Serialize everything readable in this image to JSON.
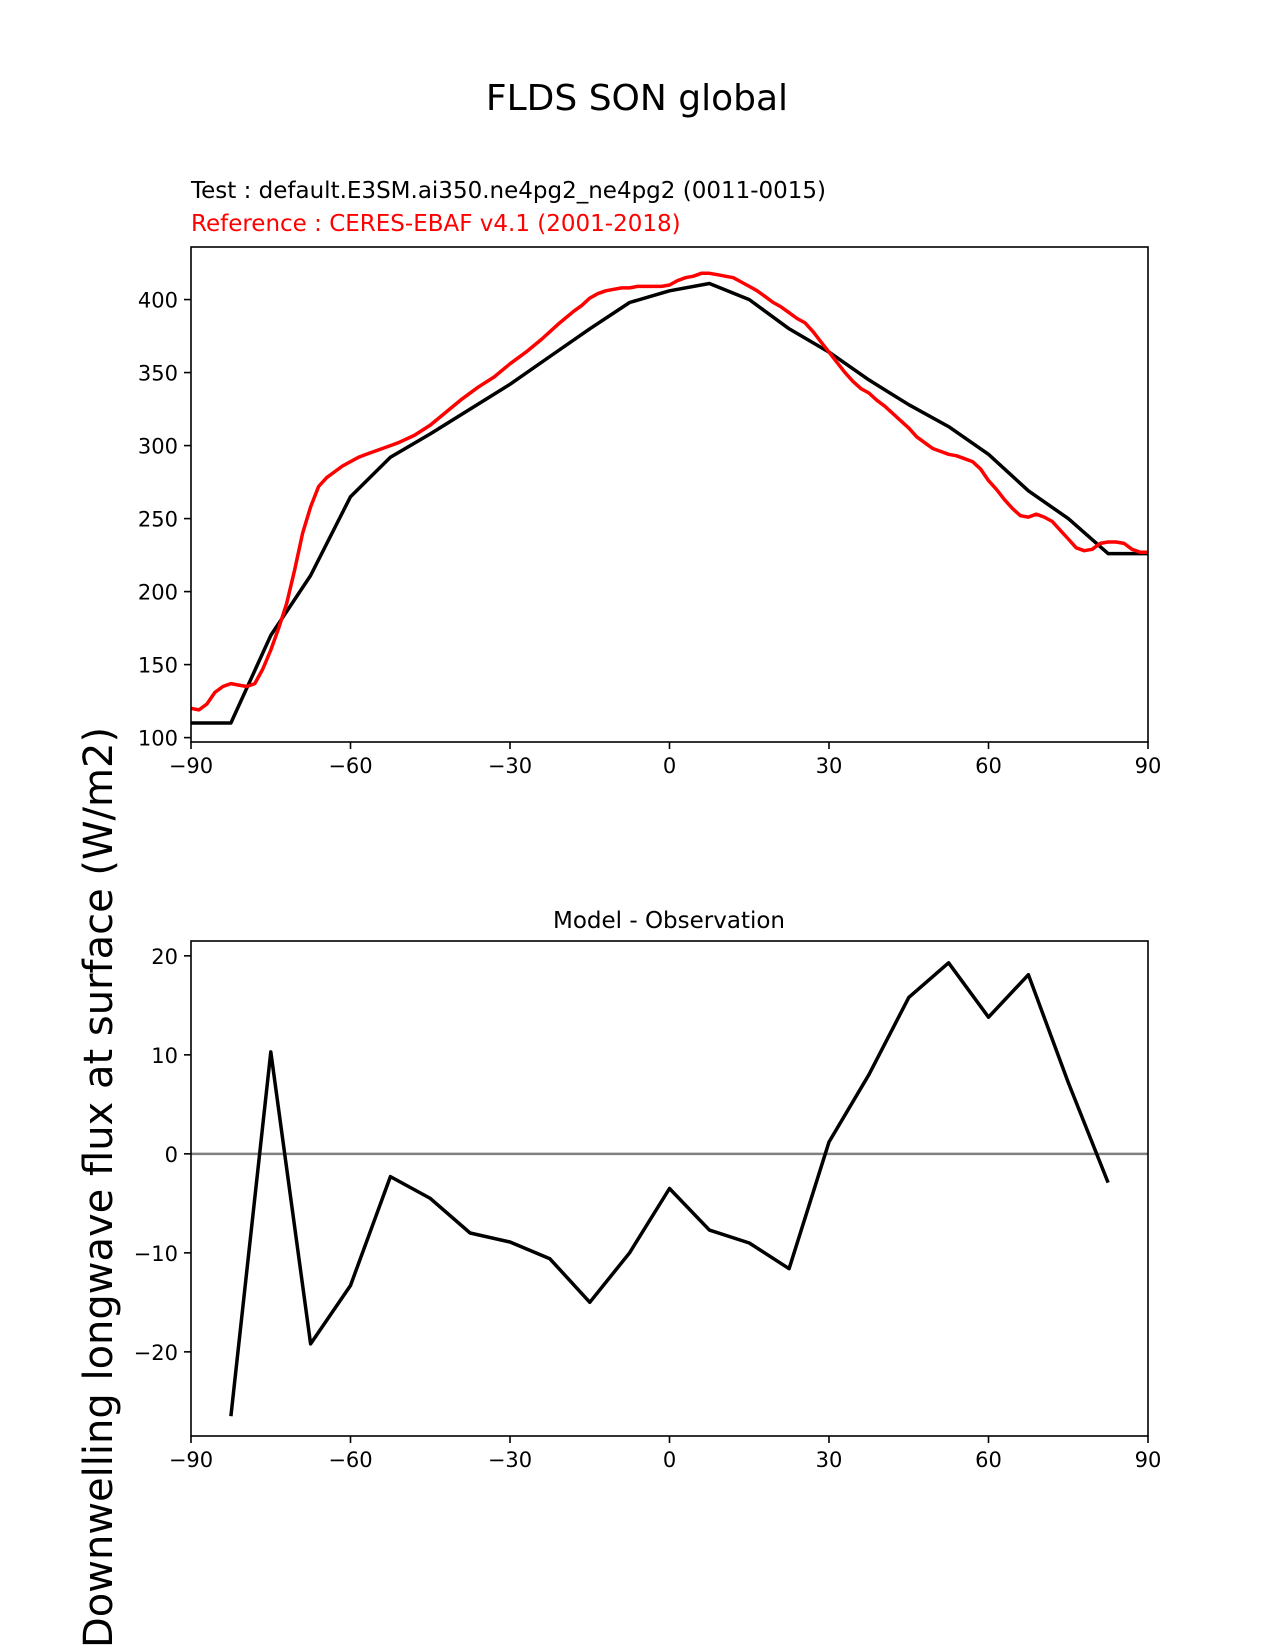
{
  "figure_title": "FLDS SON global",
  "ylabel": "Downwelling longwave flux at surface (W/m2)",
  "chart_data": [
    {
      "type": "line",
      "subtitle_test": "Test : default.E3SM.ai350.ne4pg2_ne4pg2 (0011-0015)",
      "subtitle_ref": "Reference : CERES-EBAF v4.1 (2001-2018)",
      "xlim": [
        -90,
        90
      ],
      "ylim": [
        97,
        436
      ],
      "xticks": [
        -90,
        -60,
        -30,
        0,
        30,
        60,
        90
      ],
      "yticks": [
        100,
        150,
        200,
        250,
        300,
        350,
        400
      ],
      "colors": {
        "test": "#000000",
        "reference": "#ff0000"
      },
      "series": [
        {
          "role": "test",
          "x": [
            -90,
            -82.5,
            -75,
            -67.5,
            -60,
            -52.5,
            -45,
            -37.5,
            -30,
            -22.5,
            -15,
            -7.5,
            0,
            7.5,
            15,
            22.5,
            30,
            37.5,
            45,
            52.5,
            60,
            67.5,
            75,
            82.5,
            90
          ],
          "values": [
            110,
            110,
            170,
            211,
            265,
            292,
            308,
            325,
            342,
            361,
            380,
            398,
            406,
            411,
            400,
            380,
            364,
            345,
            328,
            313,
            294,
            269,
            250,
            226,
            226
          ]
        },
        {
          "role": "reference",
          "x": [
            -90,
            -88.5,
            -87,
            -85.5,
            -84,
            -82.5,
            -81,
            -79.5,
            -78,
            -76.5,
            -75,
            -73.5,
            -72,
            -70.5,
            -69,
            -67.5,
            -66,
            -64.5,
            -63,
            -61.5,
            -60,
            -58.5,
            -57,
            -55.5,
            -54,
            -52.5,
            -51,
            -48,
            -45,
            -42,
            -39,
            -36,
            -33,
            -30,
            -27,
            -24,
            -21,
            -18,
            -16.5,
            -15,
            -13.5,
            -12,
            -10.5,
            -9,
            -7.5,
            -6,
            -4.5,
            -3,
            -1.5,
            0,
            1.5,
            3,
            4.5,
            6,
            7.5,
            9,
            10.5,
            12,
            13.5,
            15,
            16.5,
            18,
            19.5,
            21,
            22.5,
            24,
            25.5,
            27,
            28.5,
            30,
            31.5,
            33,
            34.5,
            36,
            37.5,
            39,
            40.5,
            42,
            43.5,
            45,
            46.5,
            48,
            49.5,
            51,
            52.5,
            54,
            55.5,
            57,
            58.5,
            60,
            61.5,
            63,
            64.5,
            66,
            67.5,
            69,
            70.5,
            72,
            73.5,
            75,
            76.5,
            78,
            79.5,
            81,
            82.5,
            84,
            85.5,
            87,
            88.5,
            90
          ],
          "values": [
            120,
            119,
            123,
            131,
            135,
            137,
            136,
            135,
            137,
            147,
            160,
            175,
            192,
            215,
            240,
            258,
            272,
            278,
            282,
            286,
            289,
            292,
            294,
            296,
            298,
            300,
            302,
            307,
            314,
            323,
            332,
            340,
            347,
            356,
            364,
            373,
            383,
            392,
            396,
            401,
            404,
            406,
            407,
            408,
            408,
            409,
            409,
            409,
            409,
            410,
            413,
            415,
            416,
            418,
            418,
            417,
            416,
            415,
            412,
            409,
            406,
            402,
            398,
            395,
            391,
            387,
            384,
            378,
            371,
            364,
            357,
            350,
            344,
            339,
            336,
            331,
            327,
            322,
            317,
            312,
            306,
            302,
            298,
            296,
            294,
            293,
            291,
            289,
            284,
            276,
            270,
            263,
            257,
            252,
            251,
            253,
            251,
            248,
            242,
            236,
            230,
            228,
            229,
            233,
            234,
            234,
            233,
            229,
            227,
            227
          ]
        }
      ]
    },
    {
      "type": "line",
      "title": "Model - Observation",
      "xlim": [
        -90,
        90
      ],
      "ylim": [
        -28.5,
        21.5
      ],
      "xticks": [
        -90,
        -60,
        -30,
        0,
        30,
        60,
        90
      ],
      "yticks": [
        -20,
        -10,
        0,
        10,
        20
      ],
      "zero_line_color": "#808080",
      "series": [
        {
          "x": [
            -82.5,
            -75,
            -67.5,
            -60,
            -52.5,
            -45,
            -37.5,
            -30,
            -22.5,
            -15,
            -7.5,
            0,
            7.5,
            15,
            22.5,
            30,
            37.5,
            45,
            52.5,
            60,
            67.5,
            75,
            82.5
          ],
          "values": [
            -26.5,
            10.3,
            -19.2,
            -13.3,
            -2.3,
            -4.5,
            -8.0,
            -8.9,
            -10.6,
            -15.0,
            -10.0,
            -3.5,
            -7.7,
            -9.0,
            -11.6,
            1.2,
            8.0,
            15.8,
            19.3,
            13.8,
            18.1,
            7.2,
            -2.9
          ]
        }
      ]
    }
  ]
}
